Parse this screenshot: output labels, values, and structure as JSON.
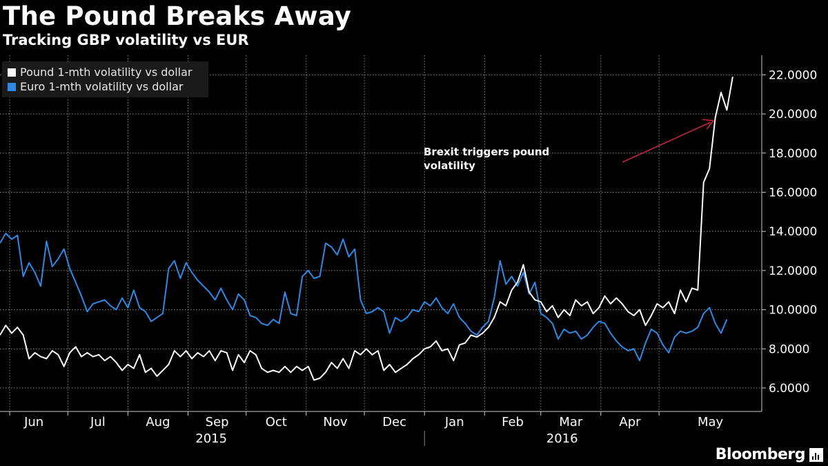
{
  "header": {
    "title": "The Pound Breaks Away",
    "subtitle": "Tracking GBP volatility vs EUR"
  },
  "legend": {
    "items": [
      {
        "label": "Pound 1-mth volatility vs dollar",
        "color": "#ffffff"
      },
      {
        "label": "Euro 1-mth volatility vs dollar",
        "color": "#2d8ae6"
      }
    ]
  },
  "annotation": {
    "line1": "Brexit triggers pound",
    "line2": "volatility",
    "arrow_color": "#c0283a"
  },
  "brand": {
    "name": "Bloomberg",
    "icon": "bloomberg-bars-icon"
  },
  "chart_data": {
    "type": "line",
    "y_axis_position": "right",
    "ylim": [
      4.8,
      23.0
    ],
    "yticks": [
      6,
      8,
      10,
      12,
      14,
      16,
      18,
      20,
      22
    ],
    "ytick_labels": [
      "6.0000",
      "8.0000",
      "10.0000",
      "12.0000",
      "14.0000",
      "16.0000",
      "18.0000",
      "20.0000",
      "22.0000"
    ],
    "grid": true,
    "legend_position": "top-left",
    "x_start": "2015-05-27",
    "x_end": "2016-06-23",
    "x_months": [
      {
        "label": "Jun",
        "date": "2015-06-01"
      },
      {
        "label": "Jul",
        "date": "2015-07-01"
      },
      {
        "label": "Aug",
        "date": "2015-08-01"
      },
      {
        "label": "Sep",
        "date": "2015-09-01"
      },
      {
        "label": "Oct",
        "date": "2015-10-01"
      },
      {
        "label": "Nov",
        "date": "2015-11-01"
      },
      {
        "label": "Dec",
        "date": "2015-12-01"
      },
      {
        "label": "Jan",
        "date": "2016-01-01"
      },
      {
        "label": "Feb",
        "date": "2016-02-01"
      },
      {
        "label": "Mar",
        "date": "2016-03-01"
      },
      {
        "label": "Apr",
        "date": "2016-04-01"
      },
      {
        "label": "May",
        "date": "2016-05-01"
      }
    ],
    "x_years": [
      {
        "label": "2015",
        "date": "2015-09-13"
      },
      {
        "label": "2016",
        "date": "2016-03-12"
      }
    ],
    "year_separator_date": "2016-01-01",
    "series": [
      {
        "name": "Pound 1-mth volatility vs dollar",
        "color": "#ffffff",
        "points": [
          [
            "2015-05-27",
            8.7
          ],
          [
            "2015-05-30",
            9.2
          ],
          [
            "2015-06-02",
            8.8
          ],
          [
            "2015-06-05",
            9.1
          ],
          [
            "2015-06-08",
            8.7
          ],
          [
            "2015-06-11",
            7.5
          ],
          [
            "2015-06-14",
            7.8
          ],
          [
            "2015-06-17",
            7.6
          ],
          [
            "2015-06-20",
            7.5
          ],
          [
            "2015-06-23",
            7.9
          ],
          [
            "2015-06-26",
            7.7
          ],
          [
            "2015-06-29",
            7.1
          ],
          [
            "2015-07-02",
            7.8
          ],
          [
            "2015-07-05",
            8.1
          ],
          [
            "2015-07-08",
            7.6
          ],
          [
            "2015-07-11",
            7.8
          ],
          [
            "2015-07-14",
            7.6
          ],
          [
            "2015-07-17",
            7.7
          ],
          [
            "2015-07-20",
            7.4
          ],
          [
            "2015-07-23",
            7.6
          ],
          [
            "2015-07-26",
            7.3
          ],
          [
            "2015-07-29",
            6.9
          ],
          [
            "2015-08-01",
            7.2
          ],
          [
            "2015-08-04",
            7.0
          ],
          [
            "2015-08-07",
            7.7
          ],
          [
            "2015-08-10",
            6.8
          ],
          [
            "2015-08-13",
            7.0
          ],
          [
            "2015-08-16",
            6.6
          ],
          [
            "2015-08-19",
            6.9
          ],
          [
            "2015-08-22",
            7.2
          ],
          [
            "2015-08-25",
            7.9
          ],
          [
            "2015-08-28",
            7.6
          ],
          [
            "2015-08-31",
            7.9
          ],
          [
            "2015-09-03",
            7.5
          ],
          [
            "2015-09-06",
            7.8
          ],
          [
            "2015-09-09",
            7.6
          ],
          [
            "2015-09-12",
            7.9
          ],
          [
            "2015-09-15",
            7.4
          ],
          [
            "2015-09-18",
            7.9
          ],
          [
            "2015-09-21",
            7.8
          ],
          [
            "2015-09-24",
            6.9
          ],
          [
            "2015-09-27",
            7.7
          ],
          [
            "2015-09-30",
            7.3
          ],
          [
            "2015-10-03",
            7.9
          ],
          [
            "2015-10-06",
            7.7
          ],
          [
            "2015-10-09",
            7.0
          ],
          [
            "2015-10-12",
            6.8
          ],
          [
            "2015-10-15",
            6.9
          ],
          [
            "2015-10-18",
            6.8
          ],
          [
            "2015-10-21",
            7.1
          ],
          [
            "2015-10-24",
            6.8
          ],
          [
            "2015-10-27",
            7.1
          ],
          [
            "2015-10-30",
            6.9
          ],
          [
            "2015-11-02",
            7.1
          ],
          [
            "2015-11-05",
            6.4
          ],
          [
            "2015-11-08",
            6.5
          ],
          [
            "2015-11-11",
            6.8
          ],
          [
            "2015-11-14",
            7.3
          ],
          [
            "2015-11-17",
            7.0
          ],
          [
            "2015-11-20",
            7.5
          ],
          [
            "2015-11-23",
            7.0
          ],
          [
            "2015-11-26",
            7.9
          ],
          [
            "2015-11-29",
            7.7
          ],
          [
            "2015-12-02",
            8.0
          ],
          [
            "2015-12-05",
            7.7
          ],
          [
            "2015-12-08",
            7.9
          ],
          [
            "2015-12-11",
            6.9
          ],
          [
            "2015-12-14",
            7.2
          ],
          [
            "2015-12-17",
            6.8
          ],
          [
            "2015-12-20",
            7.0
          ],
          [
            "2015-12-23",
            7.2
          ],
          [
            "2015-12-26",
            7.5
          ],
          [
            "2015-12-29",
            7.7
          ],
          [
            "2016-01-01",
            8.0
          ],
          [
            "2016-01-04",
            8.1
          ],
          [
            "2016-01-07",
            8.4
          ],
          [
            "2016-01-10",
            7.9
          ],
          [
            "2016-01-13",
            8.0
          ],
          [
            "2016-01-16",
            7.4
          ],
          [
            "2016-01-19",
            8.2
          ],
          [
            "2016-01-22",
            8.3
          ],
          [
            "2016-01-25",
            8.7
          ],
          [
            "2016-01-28",
            8.6
          ],
          [
            "2016-01-31",
            8.8
          ],
          [
            "2016-02-03",
            9.1
          ],
          [
            "2016-02-06",
            9.6
          ],
          [
            "2016-02-09",
            10.4
          ],
          [
            "2016-02-12",
            10.2
          ],
          [
            "2016-02-15",
            11.0
          ],
          [
            "2016-02-18",
            11.4
          ],
          [
            "2016-02-21",
            12.3
          ],
          [
            "2016-02-24",
            10.9
          ],
          [
            "2016-02-27",
            10.5
          ],
          [
            "2016-03-01",
            10.4
          ],
          [
            "2016-03-04",
            9.9
          ],
          [
            "2016-03-07",
            10.2
          ],
          [
            "2016-03-10",
            9.6
          ],
          [
            "2016-03-13",
            10.0
          ],
          [
            "2016-03-16",
            9.7
          ],
          [
            "2016-03-19",
            10.5
          ],
          [
            "2016-03-22",
            10.2
          ],
          [
            "2016-03-25",
            10.4
          ],
          [
            "2016-03-28",
            9.8
          ],
          [
            "2016-03-31",
            10.1
          ],
          [
            "2016-04-03",
            10.7
          ],
          [
            "2016-04-06",
            10.3
          ],
          [
            "2016-04-09",
            10.6
          ],
          [
            "2016-04-12",
            10.3
          ],
          [
            "2016-04-15",
            9.9
          ],
          [
            "2016-04-18",
            9.7
          ],
          [
            "2016-04-21",
            10.0
          ],
          [
            "2016-04-24",
            9.2
          ],
          [
            "2016-04-27",
            9.7
          ],
          [
            "2016-04-30",
            10.3
          ],
          [
            "2016-05-03",
            10.1
          ],
          [
            "2016-05-06",
            10.4
          ],
          [
            "2016-05-09",
            9.8
          ],
          [
            "2016-05-12",
            11.0
          ],
          [
            "2016-05-15",
            10.4
          ],
          [
            "2016-05-18",
            11.1
          ],
          [
            "2016-05-21",
            11.0
          ],
          [
            "2016-05-24",
            16.5
          ],
          [
            "2016-05-27",
            17.2
          ],
          [
            "2016-05-30",
            19.8
          ],
          [
            "2016-06-02",
            21.1
          ],
          [
            "2016-06-05",
            20.2
          ],
          [
            "2016-06-08",
            21.9
          ]
        ]
      },
      {
        "name": "Euro 1-mth volatility vs dollar",
        "color": "#2d8ae6",
        "points": [
          [
            "2015-05-27",
            13.4
          ],
          [
            "2015-05-30",
            13.9
          ],
          [
            "2015-06-02",
            13.6
          ],
          [
            "2015-06-05",
            13.8
          ],
          [
            "2015-06-08",
            11.7
          ],
          [
            "2015-06-11",
            12.4
          ],
          [
            "2015-06-14",
            11.9
          ],
          [
            "2015-06-17",
            11.2
          ],
          [
            "2015-06-20",
            13.5
          ],
          [
            "2015-06-23",
            12.2
          ],
          [
            "2015-06-26",
            12.6
          ],
          [
            "2015-06-29",
            13.1
          ],
          [
            "2015-07-02",
            12.1
          ],
          [
            "2015-07-05",
            11.4
          ],
          [
            "2015-07-08",
            10.7
          ],
          [
            "2015-07-11",
            9.9
          ],
          [
            "2015-07-14",
            10.3
          ],
          [
            "2015-07-17",
            10.4
          ],
          [
            "2015-07-20",
            10.5
          ],
          [
            "2015-07-23",
            10.2
          ],
          [
            "2015-07-26",
            10.0
          ],
          [
            "2015-07-29",
            10.6
          ],
          [
            "2015-08-01",
            10.1
          ],
          [
            "2015-08-04",
            11.0
          ],
          [
            "2015-08-07",
            10.1
          ],
          [
            "2015-08-10",
            9.9
          ],
          [
            "2015-08-13",
            9.4
          ],
          [
            "2015-08-16",
            9.6
          ],
          [
            "2015-08-19",
            9.8
          ],
          [
            "2015-08-22",
            12.1
          ],
          [
            "2015-08-25",
            12.5
          ],
          [
            "2015-08-28",
            11.6
          ],
          [
            "2015-08-31",
            12.4
          ],
          [
            "2015-09-03",
            11.9
          ],
          [
            "2015-09-06",
            11.5
          ],
          [
            "2015-09-09",
            11.2
          ],
          [
            "2015-09-12",
            10.9
          ],
          [
            "2015-09-15",
            10.5
          ],
          [
            "2015-09-18",
            11.1
          ],
          [
            "2015-09-21",
            10.5
          ],
          [
            "2015-09-24",
            10.0
          ],
          [
            "2015-09-27",
            10.8
          ],
          [
            "2015-09-30",
            10.5
          ],
          [
            "2015-10-03",
            9.7
          ],
          [
            "2015-10-06",
            9.6
          ],
          [
            "2015-10-09",
            9.3
          ],
          [
            "2015-10-12",
            9.2
          ],
          [
            "2015-10-15",
            9.5
          ],
          [
            "2015-10-18",
            9.3
          ],
          [
            "2015-10-21",
            10.9
          ],
          [
            "2015-10-24",
            9.8
          ],
          [
            "2015-10-27",
            9.7
          ],
          [
            "2015-10-30",
            11.7
          ],
          [
            "2015-11-02",
            12.0
          ],
          [
            "2015-11-05",
            11.6
          ],
          [
            "2015-11-08",
            11.7
          ],
          [
            "2015-11-11",
            13.4
          ],
          [
            "2015-11-14",
            13.2
          ],
          [
            "2015-11-17",
            12.8
          ],
          [
            "2015-11-20",
            13.6
          ],
          [
            "2015-11-23",
            12.7
          ],
          [
            "2015-11-26",
            13.1
          ],
          [
            "2015-11-29",
            10.5
          ],
          [
            "2015-12-02",
            9.8
          ],
          [
            "2015-12-05",
            9.9
          ],
          [
            "2015-12-08",
            10.1
          ],
          [
            "2015-12-11",
            9.9
          ],
          [
            "2015-12-14",
            8.8
          ],
          [
            "2015-12-17",
            9.6
          ],
          [
            "2015-12-20",
            9.4
          ],
          [
            "2015-12-23",
            9.6
          ],
          [
            "2015-12-26",
            10.0
          ],
          [
            "2015-12-29",
            9.9
          ],
          [
            "2016-01-01",
            10.4
          ],
          [
            "2016-01-04",
            10.2
          ],
          [
            "2016-01-07",
            10.6
          ],
          [
            "2016-01-10",
            10.1
          ],
          [
            "2016-01-13",
            9.8
          ],
          [
            "2016-01-16",
            10.3
          ],
          [
            "2016-01-19",
            9.6
          ],
          [
            "2016-01-22",
            9.3
          ],
          [
            "2016-01-25",
            8.9
          ],
          [
            "2016-01-28",
            8.7
          ],
          [
            "2016-01-31",
            9.1
          ],
          [
            "2016-02-03",
            9.4
          ],
          [
            "2016-02-06",
            10.6
          ],
          [
            "2016-02-09",
            12.5
          ],
          [
            "2016-02-12",
            11.3
          ],
          [
            "2016-02-15",
            11.7
          ],
          [
            "2016-02-18",
            11.2
          ],
          [
            "2016-02-21",
            11.9
          ],
          [
            "2016-02-24",
            10.8
          ],
          [
            "2016-02-27",
            11.4
          ],
          [
            "2016-03-01",
            9.8
          ],
          [
            "2016-03-04",
            9.6
          ],
          [
            "2016-03-07",
            9.3
          ],
          [
            "2016-03-10",
            8.5
          ],
          [
            "2016-03-13",
            9.0
          ],
          [
            "2016-03-16",
            8.8
          ],
          [
            "2016-03-19",
            8.9
          ],
          [
            "2016-03-22",
            8.5
          ],
          [
            "2016-03-25",
            8.7
          ],
          [
            "2016-03-28",
            9.1
          ],
          [
            "2016-03-31",
            9.4
          ],
          [
            "2016-04-03",
            9.3
          ],
          [
            "2016-04-06",
            8.8
          ],
          [
            "2016-04-09",
            8.4
          ],
          [
            "2016-04-12",
            8.1
          ],
          [
            "2016-04-15",
            7.9
          ],
          [
            "2016-04-18",
            8.0
          ],
          [
            "2016-04-21",
            7.4
          ],
          [
            "2016-04-24",
            8.3
          ],
          [
            "2016-04-27",
            9.0
          ],
          [
            "2016-04-30",
            8.8
          ],
          [
            "2016-05-03",
            8.2
          ],
          [
            "2016-05-06",
            7.8
          ],
          [
            "2016-05-09",
            8.6
          ],
          [
            "2016-05-12",
            8.9
          ],
          [
            "2016-05-15",
            8.8
          ],
          [
            "2016-05-18",
            8.9
          ],
          [
            "2016-05-21",
            9.1
          ],
          [
            "2016-05-24",
            9.8
          ],
          [
            "2016-05-27",
            10.1
          ],
          [
            "2016-05-30",
            9.3
          ],
          [
            "2016-06-02",
            8.8
          ],
          [
            "2016-06-05",
            9.5
          ]
        ]
      }
    ]
  }
}
